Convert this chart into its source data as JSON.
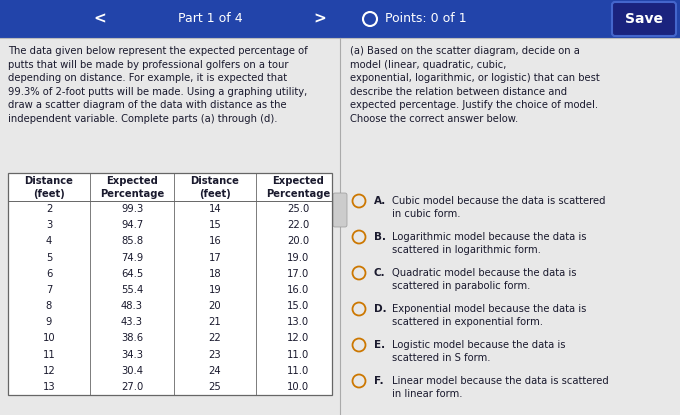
{
  "header_left": "Part 1 of 4",
  "header_center": "Points: 0 of 1",
  "header_right": "Save",
  "bg_color": "#e8e8e8",
  "header_bg": "#2244aa",
  "intro_text": "The data given below represent the expected percentage of\nputts that will be made by professional golfers on a tour\ndepending on distance. For example, it is expected that\n99.3% of 2-foot putts will be made. Using a graphing utility,\ndraw a scatter diagram of the data with distance as the\nindependent variable. Complete parts (a) through (d).",
  "question_text": "(a) Based on the scatter diagram, decide on a\nmodel (linear, quadratic, cubic,\nexponential, logarithmic, or logistic) that can best\ndescribe the relation between distance and\nexpected percentage. Justify the choice of model.\nChoose the correct answer below.",
  "table_data_left": [
    [
      2,
      "99.3"
    ],
    [
      3,
      "94.7"
    ],
    [
      4,
      "85.8"
    ],
    [
      5,
      "74.9"
    ],
    [
      6,
      "64.5"
    ],
    [
      7,
      "55.4"
    ],
    [
      8,
      "48.3"
    ],
    [
      9,
      "43.3"
    ],
    [
      10,
      "38.6"
    ],
    [
      11,
      "34.3"
    ],
    [
      12,
      "30.4"
    ],
    [
      13,
      "27.0"
    ]
  ],
  "table_data_right": [
    [
      14,
      "25.0"
    ],
    [
      15,
      "22.0"
    ],
    [
      16,
      "20.0"
    ],
    [
      17,
      "19.0"
    ],
    [
      18,
      "17.0"
    ],
    [
      19,
      "16.0"
    ],
    [
      20,
      "15.0"
    ],
    [
      21,
      "13.0"
    ],
    [
      22,
      "12.0"
    ],
    [
      23,
      "11.0"
    ],
    [
      24,
      "11.0"
    ],
    [
      25,
      "10.0"
    ]
  ],
  "answers": [
    [
      "A.",
      "Cubic model because the data is scattered\nin cubic form."
    ],
    [
      "B.",
      "Logarithmic model because the data is\nscattered in logarithmic form."
    ],
    [
      "C.",
      "Quadratic model because the data is\nscattered in parabolic form."
    ],
    [
      "D.",
      "Exponential model because the data is\nscattered in exponential form."
    ],
    [
      "E.",
      "Logistic model because the data is\nscattered in S form."
    ],
    [
      "F.",
      "Linear model because the data is scattered\nin linear form."
    ]
  ],
  "text_color": "#1a1a2e",
  "table_text_color": "#1a1a2e",
  "table_border_color": "#666666",
  "circle_color": "#cc7700",
  "header_text_color": "#ffffff",
  "divider_color": "#aaaaaa"
}
